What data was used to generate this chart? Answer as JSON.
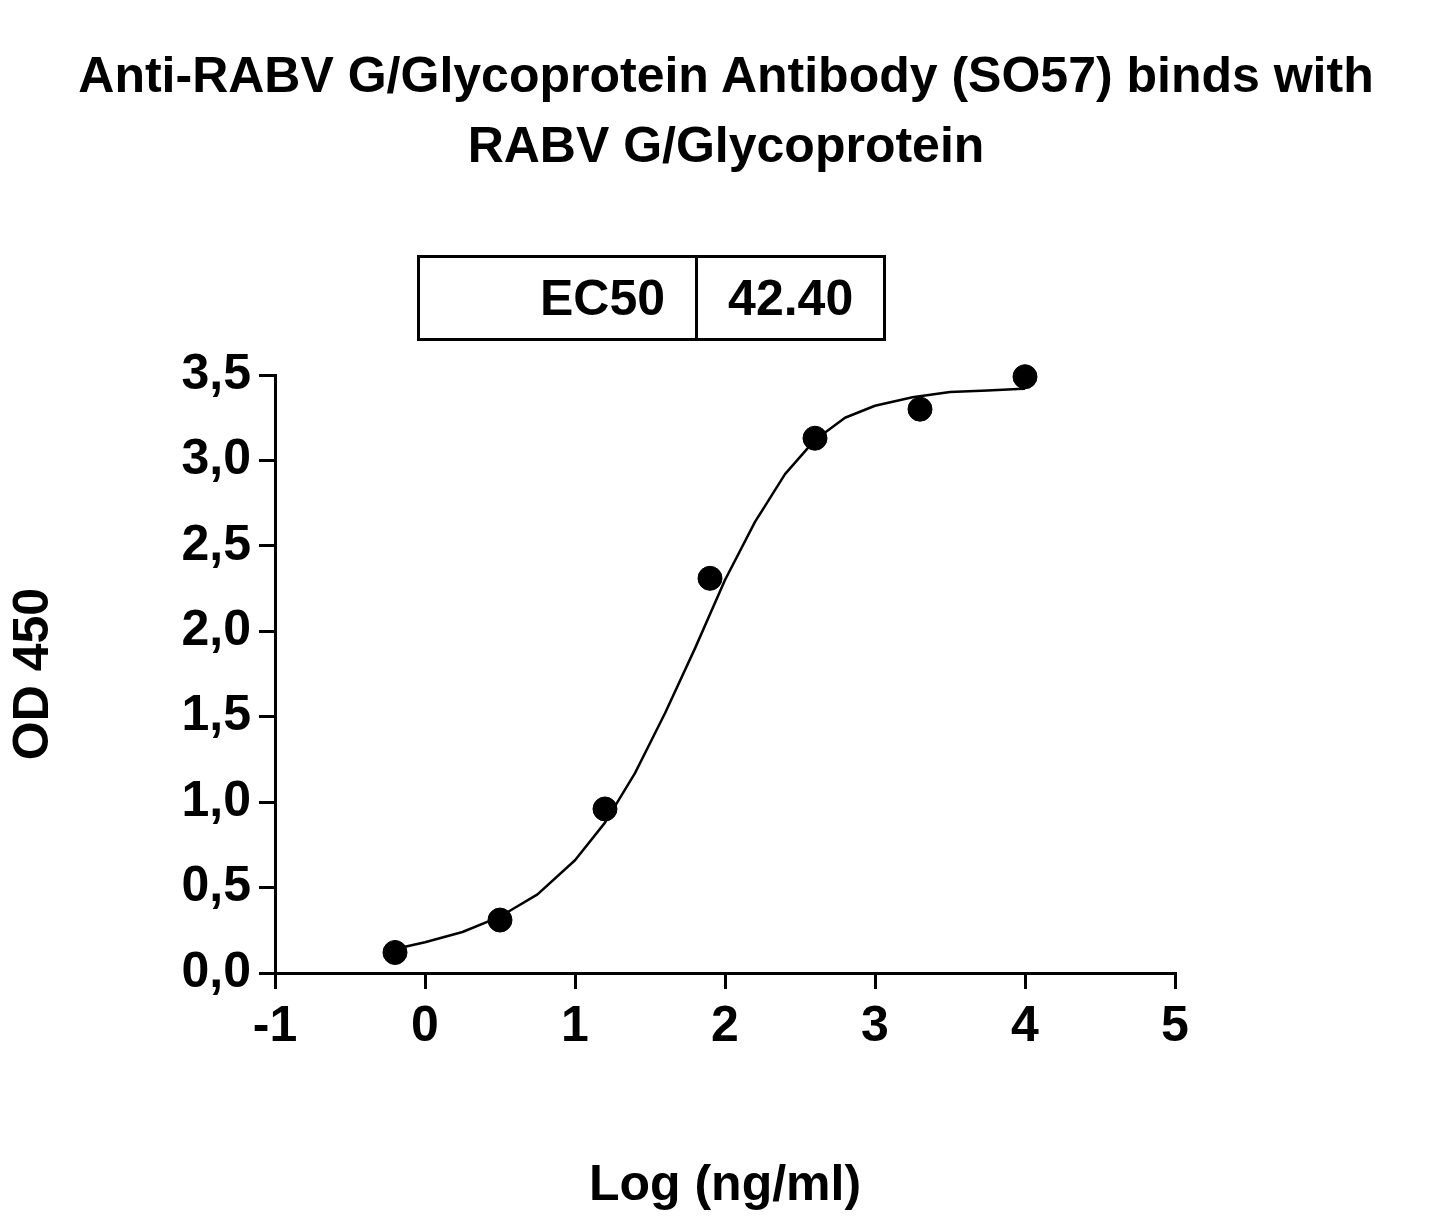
{
  "chart_data": {
    "type": "scatter",
    "title": "Anti-RABV G/Glycoprotein Antibody (SO57) binds with RABV G/Glycoprotein",
    "xlabel": "Log (ng/ml)",
    "ylabel": "OD 450",
    "annotations": [
      "EC50",
      "42.40"
    ],
    "series": [
      {
        "color": "#000000",
        "marker": "circle",
        "x": [
          -0.2,
          0.5,
          1.2,
          1.9,
          2.6,
          3.3,
          4.0
        ],
        "values": [
          0.12,
          0.31,
          0.96,
          2.31,
          3.13,
          3.3,
          3.49
        ]
      },
      {
        "type": "line",
        "color": "#000000",
        "marker": "none",
        "x": [
          -0.2,
          0,
          0.25,
          0.5,
          0.75,
          1.0,
          1.2,
          1.4,
          1.6,
          1.8,
          2.0,
          2.2,
          2.4,
          2.6,
          2.8,
          3.0,
          3.25,
          3.5,
          3.75,
          4.0
        ],
        "values": [
          0.14,
          0.18,
          0.24,
          0.33,
          0.46,
          0.66,
          0.88,
          1.17,
          1.52,
          1.9,
          2.3,
          2.64,
          2.92,
          3.12,
          3.25,
          3.32,
          3.37,
          3.4,
          3.41,
          3.42
        ]
      }
    ],
    "xlim": [
      -1,
      5
    ],
    "xticks": [
      -1,
      0,
      1,
      2,
      3,
      4,
      5
    ],
    "ylim": [
      0,
      3.5
    ],
    "yticks": [
      {
        "value": 0,
        "label": "0,0"
      },
      {
        "value": 0.5,
        "label": "0,5"
      },
      {
        "value": 1,
        "label": "1,0"
      },
      {
        "value": 1.5,
        "label": "1,5"
      },
      {
        "value": 2,
        "label": "2,0"
      },
      {
        "value": 2.5,
        "label": "2,5"
      },
      {
        "value": 3,
        "label": "3,0"
      },
      {
        "value": 3.5,
        "label": "3,5"
      }
    ],
    "grid": false,
    "legend": false
  }
}
